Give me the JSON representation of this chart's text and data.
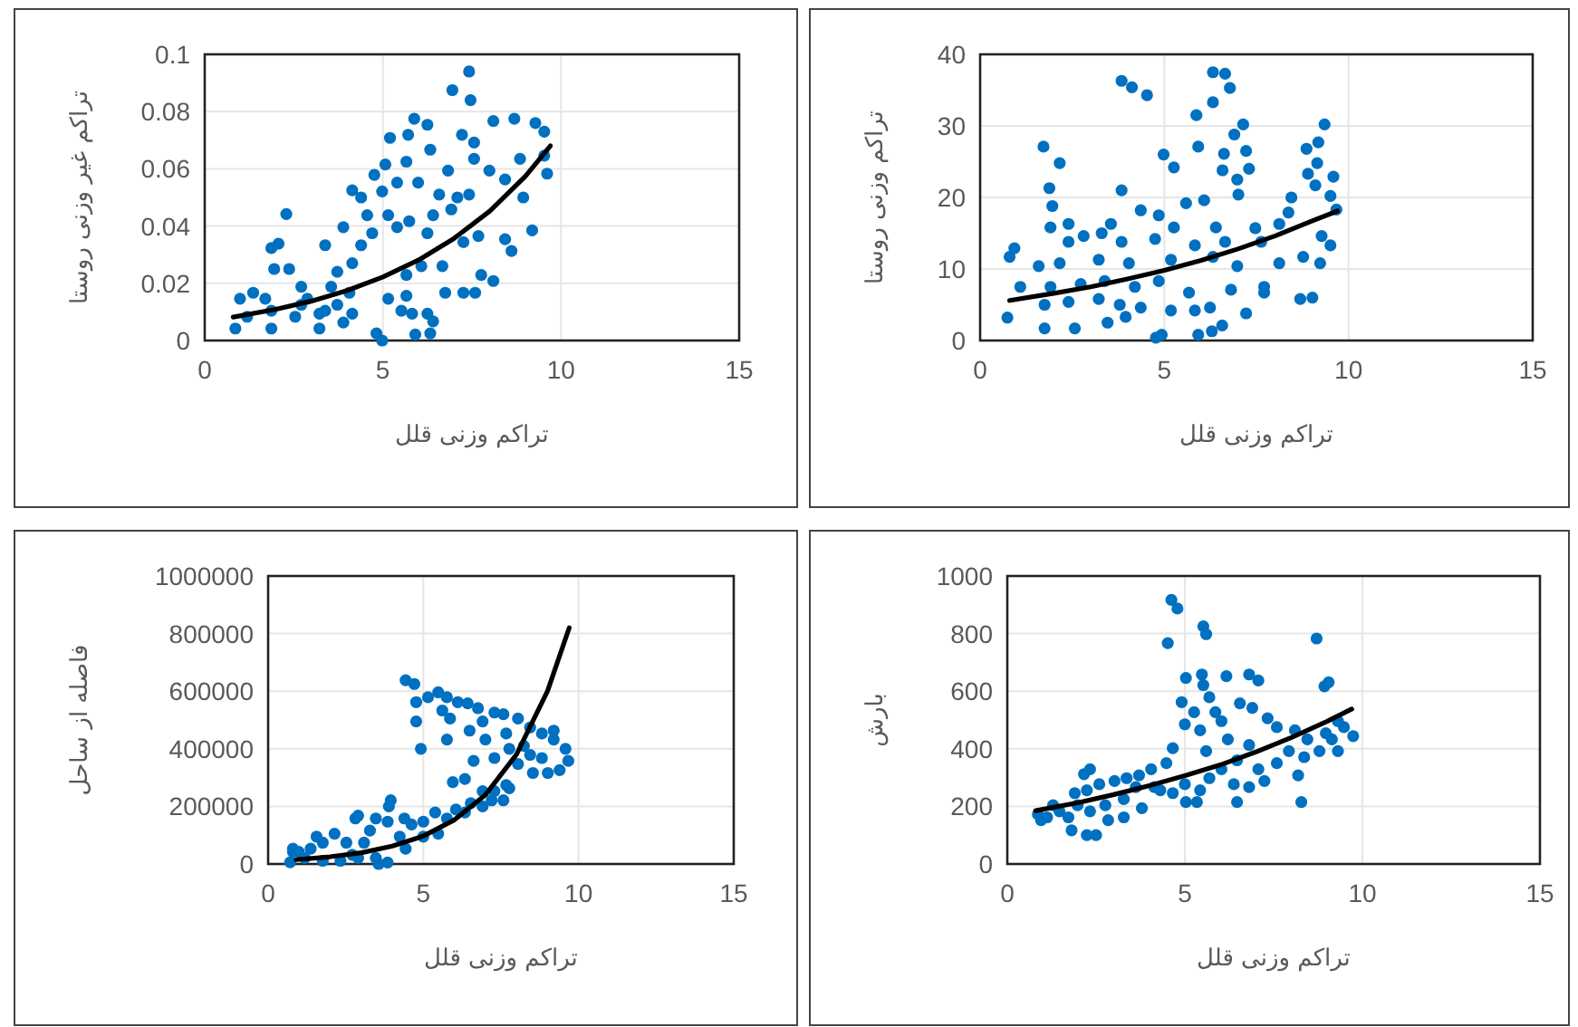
{
  "chart_data": [
    {
      "type": "scatter",
      "xlabel": "تراکم وزنی قلل",
      "ylabel": "تراکم غیر وزنی روستا",
      "xlim": [
        0,
        15
      ],
      "ylim": [
        0,
        0.1
      ],
      "xticks": [
        0,
        5,
        10,
        15
      ],
      "yticks": [
        0,
        0.02,
        0.04,
        0.06,
        0.08,
        0.1
      ],
      "grid": true,
      "marker": "circle",
      "series": [
        {
          "type": "scatter",
          "color": "#0070c0",
          "x": [
            7.42,
            6.95,
            7.46,
            5.88,
            6.25,
            8.1,
            8.69,
            9.28,
            9.53,
            5.2,
            5.71,
            7.22,
            7.56,
            6.33,
            5.66,
            7.56,
            5.07,
            6.83,
            7.99,
            8.85,
            9.53,
            9.61,
            4.76,
            5.4,
            5.99,
            8.43,
            4.14,
            4.39,
            4.98,
            6.58,
            7.09,
            7.42,
            8.94,
            4.56,
            5.15,
            5.74,
            6.41,
            6.92,
            3.89,
            4.7,
            5.4,
            6.25,
            7.68,
            8.43,
            9.19,
            2.29,
            1.87,
            2.07,
            3.38,
            4.39,
            7.26,
            8.61,
            1.95,
            2.37,
            3.72,
            4.14,
            5.66,
            6.08,
            6.67,
            7.76,
            8.1,
            0.99,
            1.36,
            1.7,
            2.71,
            2.88,
            3.55,
            4.06,
            5.15,
            5.66,
            6.75,
            7.26,
            7.59,
            1.19,
            1.87,
            2.54,
            3.38,
            3.89,
            4.14,
            5.52,
            5.82,
            6.25,
            0.86,
            1.87,
            3.22,
            4.82,
            4.98,
            5.91,
            6.33,
            6.41,
            3.22,
            3.72,
            2.71
          ],
          "values": [
            0.094,
            0.0875,
            0.084,
            0.0775,
            0.0754,
            0.0767,
            0.0775,
            0.076,
            0.073,
            0.0708,
            0.0719,
            0.0719,
            0.0692,
            0.0667,
            0.0625,
            0.0635,
            0.0615,
            0.0594,
            0.0594,
            0.0635,
            0.0646,
            0.0583,
            0.0579,
            0.0552,
            0.0552,
            0.0563,
            0.0525,
            0.05,
            0.0521,
            0.051,
            0.05,
            0.051,
            0.05,
            0.0438,
            0.0438,
            0.0417,
            0.0438,
            0.0458,
            0.0396,
            0.0375,
            0.0396,
            0.0375,
            0.0365,
            0.0354,
            0.0385,
            0.0442,
            0.0323,
            0.0338,
            0.0333,
            0.0333,
            0.0344,
            0.0313,
            0.025,
            0.025,
            0.024,
            0.027,
            0.0229,
            0.026,
            0.026,
            0.0229,
            0.0208,
            0.0146,
            0.0167,
            0.0146,
            0.0188,
            0.0146,
            0.0188,
            0.0167,
            0.0146,
            0.0156,
            0.0167,
            0.0167,
            0.0167,
            0.0083,
            0.0104,
            0.0083,
            0.0104,
            0.0063,
            0.0094,
            0.0104,
            0.0094,
            0.0094,
            0.0042,
            0.0042,
            0.0042,
            0.0025,
            0.0,
            0.0021,
            0.0025,
            0.0067,
            0.0094,
            0.0125,
            0.0125
          ]
        },
        {
          "type": "line",
          "color": "#000000",
          "x": [
            0.8,
            2,
            3,
            4,
            5,
            6,
            7,
            8,
            9,
            9.7
          ],
          "marker": "none",
          "values": [
            0.0082,
            0.0109,
            0.0138,
            0.0175,
            0.0222,
            0.0281,
            0.0357,
            0.0452,
            0.0574,
            0.068
          ]
        }
      ]
    },
    {
      "type": "scatter",
      "xlabel": "تراکم وزنی قلل",
      "ylabel": "تراکم وزنی روستا",
      "xlim": [
        0,
        15
      ],
      "ylim": [
        0,
        40
      ],
      "xticks": [
        0,
        5,
        10,
        15
      ],
      "yticks": [
        0,
        10,
        20,
        30,
        40
      ],
      "grid": true,
      "marker": "circle",
      "series": [
        {
          "type": "scatter",
          "color": "#0070c0",
          "x": [
            3.84,
            4.12,
            4.53,
            6.32,
            6.65,
            6.78,
            5.87,
            6.32,
            7.14,
            6.9,
            9.35,
            9.18,
            8.86,
            1.72,
            2.16,
            5.92,
            4.98,
            6.62,
            7.22,
            5.26,
            6.58,
            7.3,
            9.15,
            8.9,
            9.59,
            1.88,
            3.84,
            6.98,
            7.01,
            9.1,
            9.51,
            8.45,
            1.96,
            4.36,
            5.59,
            6.08,
            4.85,
            8.37,
            9.67,
            1.91,
            2.4,
            3.55,
            5.26,
            6.4,
            7.47,
            8.12,
            0.93,
            2.4,
            2.81,
            3.3,
            3.84,
            4.75,
            5.83,
            6.65,
            7.63,
            9.27,
            9.51,
            0.8,
            1.59,
            2.16,
            3.22,
            4.04,
            5.18,
            6.32,
            6.98,
            8.12,
            8.77,
            9.23,
            1.09,
            1.91,
            2.73,
            3.38,
            4.2,
            4.85,
            5.67,
            6.81,
            7.71,
            1.75,
            2.4,
            3.22,
            3.79,
            4.36,
            5.18,
            6.24,
            7.22,
            7.71,
            8.69,
            9.02,
            0.74,
            1.75,
            2.57,
            3.46,
            3.95,
            4.77,
            4.93,
            5.92,
            6.29,
            6.57,
            5.83
          ],
          "values": [
            36.3,
            35.4,
            34.3,
            37.5,
            37.3,
            35.3,
            31.5,
            33.3,
            30.2,
            28.8,
            30.2,
            27.7,
            26.8,
            27.1,
            24.8,
            27.1,
            26,
            26.1,
            26.5,
            24.2,
            23.8,
            24,
            24.8,
            23.3,
            22.9,
            21.3,
            21,
            22.5,
            20.4,
            21.7,
            20.2,
            20,
            18.8,
            18.2,
            19.2,
            19.6,
            17.5,
            17.9,
            18.3,
            15.8,
            16.3,
            16.3,
            15.8,
            15.8,
            15.7,
            16.3,
            12.9,
            13.8,
            14.6,
            15,
            13.8,
            14.2,
            13.3,
            13.8,
            13.8,
            14.6,
            13.3,
            11.7,
            10.4,
            10.8,
            11.3,
            10.8,
            11.3,
            11.7,
            10.4,
            10.8,
            11.7,
            10.8,
            7.5,
            7.5,
            7.9,
            8.3,
            7.5,
            8.3,
            6.7,
            7.1,
            7.5,
            5,
            5.4,
            5.8,
            5,
            4.6,
            4.2,
            4.6,
            3.8,
            6.7,
            5.8,
            6,
            3.2,
            1.7,
            1.7,
            2.5,
            3.3,
            0.4,
            0.8,
            0.8,
            1.3,
            2.1,
            4.2
          ]
        },
        {
          "type": "line",
          "color": "#000000",
          "x": [
            0.8,
            2,
            3,
            4,
            5,
            6,
            7,
            8,
            9,
            9.7
          ],
          "marker": "none",
          "values": [
            5.6,
            6.6,
            7.5,
            8.6,
            9.8,
            11.2,
            12.8,
            14.6,
            16.7,
            18.1
          ]
        }
      ]
    },
    {
      "type": "scatter",
      "xlabel": "تراکم وزنی قلل",
      "ylabel": "فاصله از ساحل",
      "xlim": [
        0,
        15
      ],
      "ylim": [
        0,
        1000000
      ],
      "xticks": [
        0,
        5,
        10,
        15
      ],
      "yticks": [
        0,
        200000,
        400000,
        600000,
        800000,
        1000000
      ],
      "grid": true,
      "marker": "circle",
      "series": [
        {
          "type": "scatter",
          "color": "#0070c0",
          "x": [
            4.43,
            4.71,
            4.77,
            4.77,
            4.92,
            5.15,
            5.48,
            5.76,
            5.61,
            5.86,
            6.11,
            6.43,
            6.76,
            6.49,
            6.91,
            7.29,
            7.58,
            5.76,
            5.95,
            6.34,
            6.62,
            7.0,
            7.29,
            7.67,
            8.05,
            8.44,
            8.24,
            8.82,
            9.2,
            9.58,
            9.67,
            9.39,
            9.01,
            8.53,
            8.05,
            7.77,
            8.44,
            8.82,
            9.2,
            7.77,
            7.58,
            7.2,
            6.91,
            6.53,
            6.34,
            6.05,
            5.76,
            5.38,
            5.0,
            4.62,
            4.24,
            3.95,
            3.89,
            3.47,
            3.28,
            3.09,
            3.85,
            4.43,
            5.0,
            5.48,
            3.47,
            3.56,
            2.71,
            2.52,
            2.14,
            1.76,
            1.37,
            0.99,
            0.8,
            0.71,
            1.18,
            1.76,
            2.33,
            2.9,
            3.85,
            1.56,
            0.8,
            2.81,
            2.9,
            4.39,
            6.91,
            7.29,
            7.67
          ],
          "values": [
            638000,
            625000,
            562000,
            495000,
            400000,
            579000,
            596000,
            579000,
            533000,
            505000,
            562000,
            558000,
            541000,
            463000,
            495000,
            526000,
            520000,
            432000,
            284000,
            295000,
            358000,
            432000,
            368000,
            453000,
            505000,
            474000,
            410000,
            453000,
            432000,
            400000,
            358000,
            326000,
            316000,
            316000,
            347000,
            400000,
            379000,
            368000,
            463000,
            263000,
            221000,
            221000,
            200000,
            211000,
            179000,
            189000,
            158000,
            179000,
            147000,
            137000,
            95000,
            221000,
            200000,
            158000,
            116000,
            74000,
            147000,
            53000,
            95000,
            105000,
            21000,
            0,
            32000,
            74000,
            105000,
            74000,
            53000,
            42000,
            42000,
            6000,
            21000,
            11000,
            11000,
            21000,
            5000,
            95000,
            53000,
            158000,
            168000,
            158000,
            253000,
            253000,
            274000
          ]
        },
        {
          "type": "line",
          "color": "#000000",
          "x": [
            0.9,
            2,
            3,
            4,
            5,
            6,
            7,
            8,
            9,
            9.7
          ],
          "marker": "none",
          "values": [
            15000,
            25000,
            39000,
            62000,
            97000,
            153000,
            240000,
            380000,
            600000,
            820000
          ]
        }
      ]
    },
    {
      "type": "scatter",
      "xlabel": "تراکم وزنی قلل",
      "ylabel": "بارش",
      "xlim": [
        0,
        15
      ],
      "ylim": [
        0,
        1000
      ],
      "xticks": [
        0,
        5,
        10,
        15
      ],
      "yticks": [
        0,
        200,
        400,
        600,
        800,
        1000
      ],
      "grid": true,
      "marker": "circle",
      "series": [
        {
          "type": "scatter",
          "color": "#0070c0",
          "x": [
            4.62,
            4.79,
            4.52,
            5.52,
            5.6,
            8.71,
            5.03,
            5.48,
            6.17,
            6.81,
            7.07,
            9.05,
            8.93,
            5.52,
            5.69,
            4.91,
            5.26,
            5.86,
            6.55,
            6.9,
            6.03,
            5.0,
            5.43,
            7.33,
            7.59,
            8.1,
            8.45,
            8.97,
            9.48,
            9.74,
            9.31,
            8.79,
            8.36,
            7.59,
            7.07,
            6.47,
            6.03,
            5.6,
            6.81,
            6.21,
            4.66,
            4.48,
            4.05,
            3.71,
            3.36,
            3.02,
            2.59,
            2.24,
            1.9,
            2.16,
            2.33,
            3.62,
            4.14,
            5.0,
            5.43,
            5.69,
            6.38,
            6.81,
            7.24,
            6.47,
            8.28,
            5.03,
            5.34,
            4.66,
            4.31,
            3.28,
            2.76,
            2.33,
            1.98,
            1.72,
            1.81,
            2.24,
            2.5,
            2.84,
            3.28,
            3.79,
            0.86,
            0.95,
            1.12,
            1.29,
            1.47,
            9.31,
            9.14,
            7.93,
            8.19
          ],
          "values": [
            917,
            887,
            767,
            825,
            798,
            783,
            646,
            658,
            652,
            658,
            637,
            631,
            617,
            621,
            579,
            562,
            527,
            527,
            558,
            542,
            496,
            485,
            464,
            506,
            475,
            464,
            433,
            454,
            475,
            444,
            392,
            392,
            371,
            350,
            329,
            360,
            329,
            392,
            413,
            433,
            402,
            350,
            329,
            308,
            298,
            288,
            277,
            256,
            246,
            312,
            329,
            267,
            267,
            277,
            256,
            298,
            277,
            267,
            288,
            215,
            215,
            215,
            215,
            246,
            256,
            225,
            204,
            183,
            204,
            162,
            117,
            100,
            100,
            152,
            162,
            194,
            173,
            152,
            162,
            204,
            183,
            496,
            433,
            392,
            308
          ]
        },
        {
          "type": "line",
          "color": "#000000",
          "x": [
            0.8,
            2,
            3,
            4,
            5,
            6,
            7,
            8,
            9,
            9.7
          ],
          "marker": "none",
          "values": [
            185,
            213,
            241,
            272,
            307,
            344,
            389,
            439,
            495,
            538
          ]
        }
      ]
    }
  ]
}
